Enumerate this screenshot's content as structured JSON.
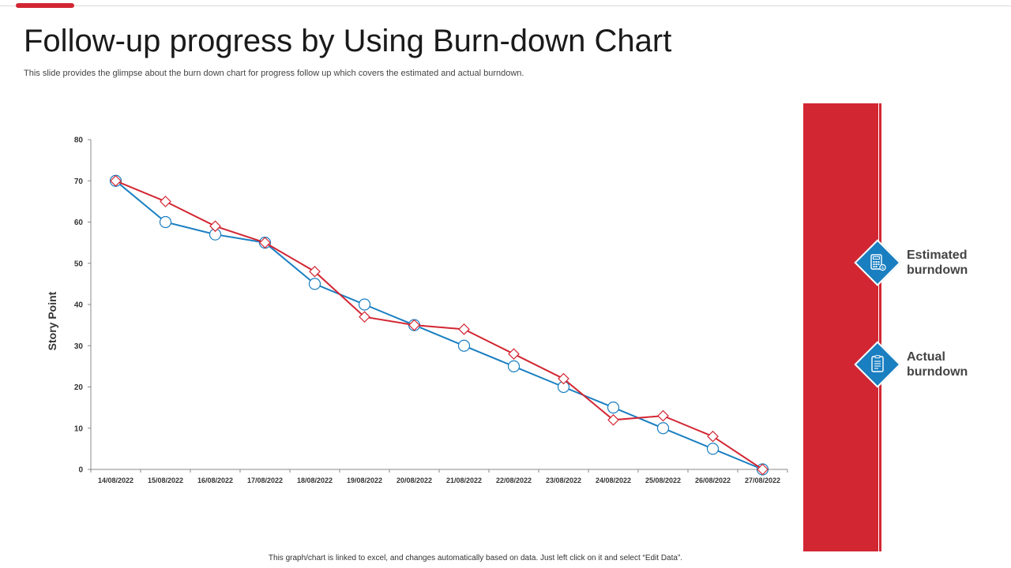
{
  "header": {
    "title": "Follow-up progress by Using Burn-down Chart",
    "subtitle": "This slide provides the glimpse about the burn down chart for progress follow up which covers the estimated and actual burndown."
  },
  "colors": {
    "accent": "#d22632",
    "blue": "#1a7fc1",
    "estimated_line": "#1a7fc1",
    "actual_line": "#d22632"
  },
  "chart_data": {
    "type": "line",
    "ylabel": "Story Point",
    "xlabel": "",
    "ylim": [
      0,
      80
    ],
    "yticks": [
      0,
      10,
      20,
      30,
      40,
      50,
      60,
      70,
      80
    ],
    "categories": [
      "14/08/2022",
      "15/08/2022",
      "16/08/2022",
      "17/08/2022",
      "18/08/2022",
      "19/08/2022",
      "20/08/2022",
      "21/08/2022",
      "22/08/2022",
      "23/08/2022",
      "24/08/2022",
      "25/08/2022",
      "26/08/2022",
      "27/08/2022"
    ],
    "series": [
      {
        "name": "Estimated burndown",
        "marker": "circle",
        "color": "#1a7fc1",
        "values": [
          70,
          60,
          57,
          55,
          45,
          40,
          35,
          30,
          25,
          20,
          15,
          10,
          5,
          0
        ]
      },
      {
        "name": "Actual burndown",
        "marker": "diamond",
        "color": "#d22632",
        "values": [
          70,
          65,
          59,
          55,
          48,
          37,
          35,
          34,
          28,
          22,
          12,
          13,
          8,
          0
        ]
      }
    ],
    "grid": false,
    "legend": "right"
  },
  "legend": {
    "estimated": {
      "line1": "Estimated",
      "line2": "burndown",
      "icon": "calculator-icon"
    },
    "actual": {
      "line1": "Actual",
      "line2": "burndown",
      "icon": "document-icon"
    }
  },
  "footer": {
    "text": "This graph/chart is linked to excel, and changes automatically based on data. Just left click on it and select “Edit Data”."
  }
}
